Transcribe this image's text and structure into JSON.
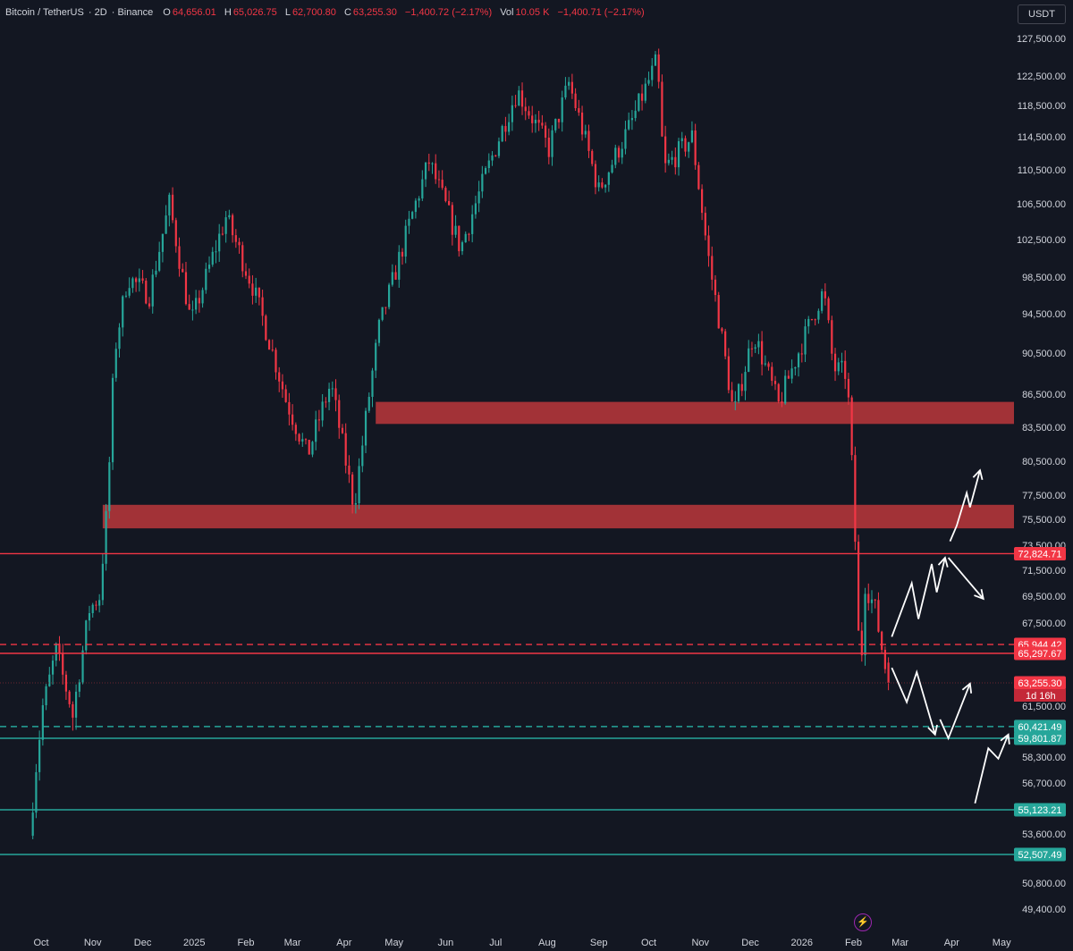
{
  "header": {
    "symbol": "Bitcoin / TetherUS",
    "interval": "2D",
    "exchange": "Binance",
    "open_label": "O",
    "open": "64,656.01",
    "high_label": "H",
    "high": "65,026.75",
    "low_label": "L",
    "low": "62,700.80",
    "close_label": "C",
    "close": "63,255.30",
    "change": "−1,400.72 (−2.17%)",
    "vol_label": "Vol",
    "vol": "10.05 K",
    "change2": "−1,400.71 (−2.17%)"
  },
  "currency_button": "USDT",
  "colors": {
    "background": "#131722",
    "up": "#26a69a",
    "down": "#f23645",
    "resistance_zone": "#b2353a",
    "support_line": "#26a69a",
    "resistance_line": "#f23645",
    "arrow": "#ffffff"
  },
  "chart_data": {
    "type": "candlestick",
    "timeframe": "2D",
    "y_ticks": [
      127500,
      122500,
      118500,
      114500,
      110500,
      106500,
      102500,
      98500,
      94500,
      90500,
      86500,
      83500,
      80500,
      77500,
      75500,
      73500,
      71500,
      69500,
      67500,
      61500,
      58300,
      56700,
      53600,
      50800,
      49400
    ],
    "y_tick_labels": [
      "127,500.00",
      "122,500.00",
      "118,500.00",
      "114,500.00",
      "110,500.00",
      "106,500.00",
      "102,500.00",
      "98,500.00",
      "94,500.00",
      "90,500.00",
      "86,500.00",
      "83,500.00",
      "80,500.00",
      "77,500.00",
      "75,500.00",
      "73,500.00",
      "71,500.00",
      "69,500.00",
      "67,500.00",
      "61,500.00",
      "58,300.00",
      "56,700.00",
      "53,600.00",
      "50,800.00",
      "49,400.00"
    ],
    "x_labels": [
      "Oct",
      "Nov",
      "Dec",
      "2025",
      "Feb",
      "Mar",
      "Apr",
      "May",
      "Jun",
      "Jul",
      "Aug",
      "Sep",
      "Oct",
      "Nov",
      "Dec",
      "2026",
      "Feb",
      "Mar",
      "Apr",
      "May"
    ],
    "price_path": [
      {
        "t": "2024-09-24",
        "p": 53500
      },
      {
        "t": "2024-10-01",
        "p": 61000
      },
      {
        "t": "2024-10-10",
        "p": 65500
      },
      {
        "t": "2024-10-20",
        "p": 61000
      },
      {
        "t": "2024-10-30",
        "p": 68500
      },
      {
        "t": "2024-11-05",
        "p": 69500
      },
      {
        "t": "2024-11-10",
        "p": 77000
      },
      {
        "t": "2024-11-14",
        "p": 90500
      },
      {
        "t": "2024-11-22",
        "p": 98500
      },
      {
        "t": "2024-12-05",
        "p": 96500
      },
      {
        "t": "2024-12-17",
        "p": 106500
      },
      {
        "t": "2024-12-30",
        "p": 93500
      },
      {
        "t": "2025-01-20",
        "p": 105000
      },
      {
        "t": "2025-02-05",
        "p": 97500
      },
      {
        "t": "2025-02-25",
        "p": 86000
      },
      {
        "t": "2025-03-10",
        "p": 81000
      },
      {
        "t": "2025-03-24",
        "p": 87500
      },
      {
        "t": "2025-04-07",
        "p": 76500
      },
      {
        "t": "2025-04-22",
        "p": 93000
      },
      {
        "t": "2025-05-22",
        "p": 111500
      },
      {
        "t": "2025-06-10",
        "p": 101500
      },
      {
        "t": "2025-07-14",
        "p": 120500
      },
      {
        "t": "2025-08-02",
        "p": 113000
      },
      {
        "t": "2025-08-14",
        "p": 121500
      },
      {
        "t": "2025-09-01",
        "p": 108000
      },
      {
        "t": "2025-09-20",
        "p": 116000
      },
      {
        "t": "2025-10-06",
        "p": 124500
      },
      {
        "t": "2025-10-10",
        "p": 110500
      },
      {
        "t": "2025-10-27",
        "p": 114500
      },
      {
        "t": "2025-11-05",
        "p": 101500
      },
      {
        "t": "2025-11-21",
        "p": 84500
      },
      {
        "t": "2025-12-03",
        "p": 92500
      },
      {
        "t": "2025-12-18",
        "p": 85500
      },
      {
        "t": "2026-01-14",
        "p": 97000
      },
      {
        "t": "2026-01-20",
        "p": 89000
      },
      {
        "t": "2026-01-28",
        "p": 88500
      },
      {
        "t": "2026-02-01",
        "p": 77500
      },
      {
        "t": "2026-02-05",
        "p": 63000
      },
      {
        "t": "2026-02-08",
        "p": 70500
      },
      {
        "t": "2026-02-14",
        "p": 68500
      },
      {
        "t": "2026-02-19",
        "p": 65000
      },
      {
        "t": "2026-02-22",
        "p": 63255
      }
    ],
    "last_candle": {
      "open": 64656.01,
      "high": 65026.75,
      "low": 62700.8,
      "close": 63255.3
    },
    "zones": [
      {
        "name": "upper-resistance-zone",
        "from": 83800,
        "to": 85800,
        "start": "2025-04-20"
      },
      {
        "name": "lower-resistance-zone",
        "from": 74800,
        "to": 76700,
        "start": "2024-11-07"
      }
    ],
    "levels": [
      {
        "price": 72824.71,
        "label": "72,824.71",
        "color": "#f23645",
        "style": "solid"
      },
      {
        "price": 65944.42,
        "label": "65,944.42",
        "color": "#f23645",
        "style": "dashed"
      },
      {
        "price": 65297.67,
        "label": "65,297.67",
        "color": "#f23645",
        "style": "solid"
      },
      {
        "price": 60421.49,
        "label": "60,421.49",
        "color": "#26a69a",
        "style": "dashed"
      },
      {
        "price": 59801.87,
        "label": "59,801.87",
        "color": "#26a69a",
        "style": "solid"
      },
      {
        "price": 55123.21,
        "label": "55,123.21",
        "color": "#26a69a",
        "style": "solid"
      },
      {
        "price": 52507.49,
        "label": "52,507.49",
        "color": "#26a69a",
        "style": "solid"
      }
    ],
    "current_price": {
      "value": 63255.3,
      "label": "63,255.30",
      "countdown": "1d 16h"
    },
    "projections": [
      {
        "name": "bullish-projection",
        "points": [
          [
            "2026-02-24",
            66500
          ],
          [
            "2026-03-08",
            70500
          ],
          [
            "2026-03-12",
            67800
          ],
          [
            "2026-03-20",
            72000
          ],
          [
            "2026-03-23",
            69800
          ],
          [
            "2026-03-28",
            72500
          ]
        ]
      },
      {
        "name": "breakout-projection",
        "points": [
          [
            "2026-03-31",
            73800
          ],
          [
            "2026-04-04",
            75000
          ],
          [
            "2026-04-10",
            77700
          ],
          [
            "2026-04-12",
            76500
          ],
          [
            "2026-04-18",
            79700
          ]
        ]
      },
      {
        "name": "rejection-projection",
        "points": [
          [
            "2026-03-30",
            72500
          ],
          [
            "2026-04-10",
            70800
          ],
          [
            "2026-04-20",
            69300
          ]
        ]
      },
      {
        "name": "pullback-projection",
        "points": [
          [
            "2026-02-24",
            64300
          ],
          [
            "2026-03-05",
            61800
          ],
          [
            "2026-03-11",
            64000
          ],
          [
            "2026-03-22",
            60000
          ]
        ]
      },
      {
        "name": "bounce-projection",
        "points": [
          [
            "2026-03-25",
            60800
          ],
          [
            "2026-03-30",
            59800
          ],
          [
            "2026-04-12",
            63200
          ]
        ]
      },
      {
        "name": "deep-dip-projection",
        "points": [
          [
            "2026-04-15",
            55500
          ],
          [
            "2026-04-23",
            59000
          ],
          [
            "2026-04-29",
            58200
          ],
          [
            "2026-05-05",
            60000
          ]
        ]
      }
    ]
  }
}
